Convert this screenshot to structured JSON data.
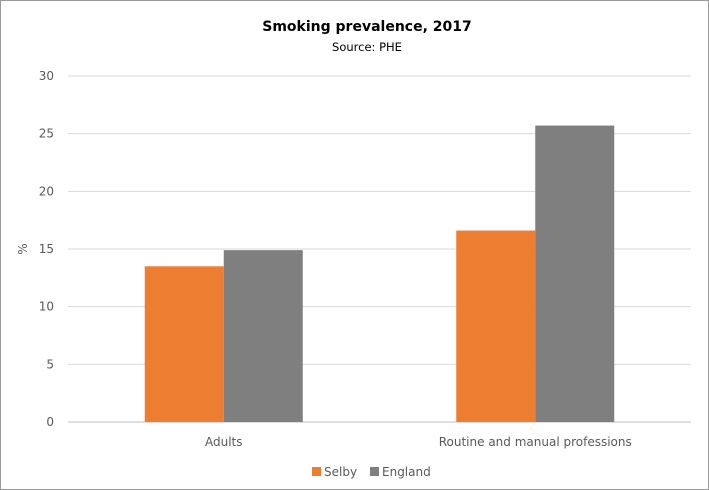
{
  "chart_data": {
    "type": "bar",
    "title": "Smoking prevalence, 2017",
    "subtitle": "Source: PHE",
    "xlabel": "",
    "ylabel": "%",
    "ylim": [
      0,
      30
    ],
    "yticks": [
      0,
      5,
      10,
      15,
      20,
      25,
      30
    ],
    "categories": [
      "Adults",
      "Routine and manual professions"
    ],
    "series": [
      {
        "name": "Selby",
        "values": [
          13.5,
          16.6
        ],
        "color": "#ED7D31"
      },
      {
        "name": "England",
        "values": [
          14.9,
          25.7
        ],
        "color": "#7F7F7F"
      }
    ],
    "grid": true,
    "legend": "bottom-center"
  }
}
